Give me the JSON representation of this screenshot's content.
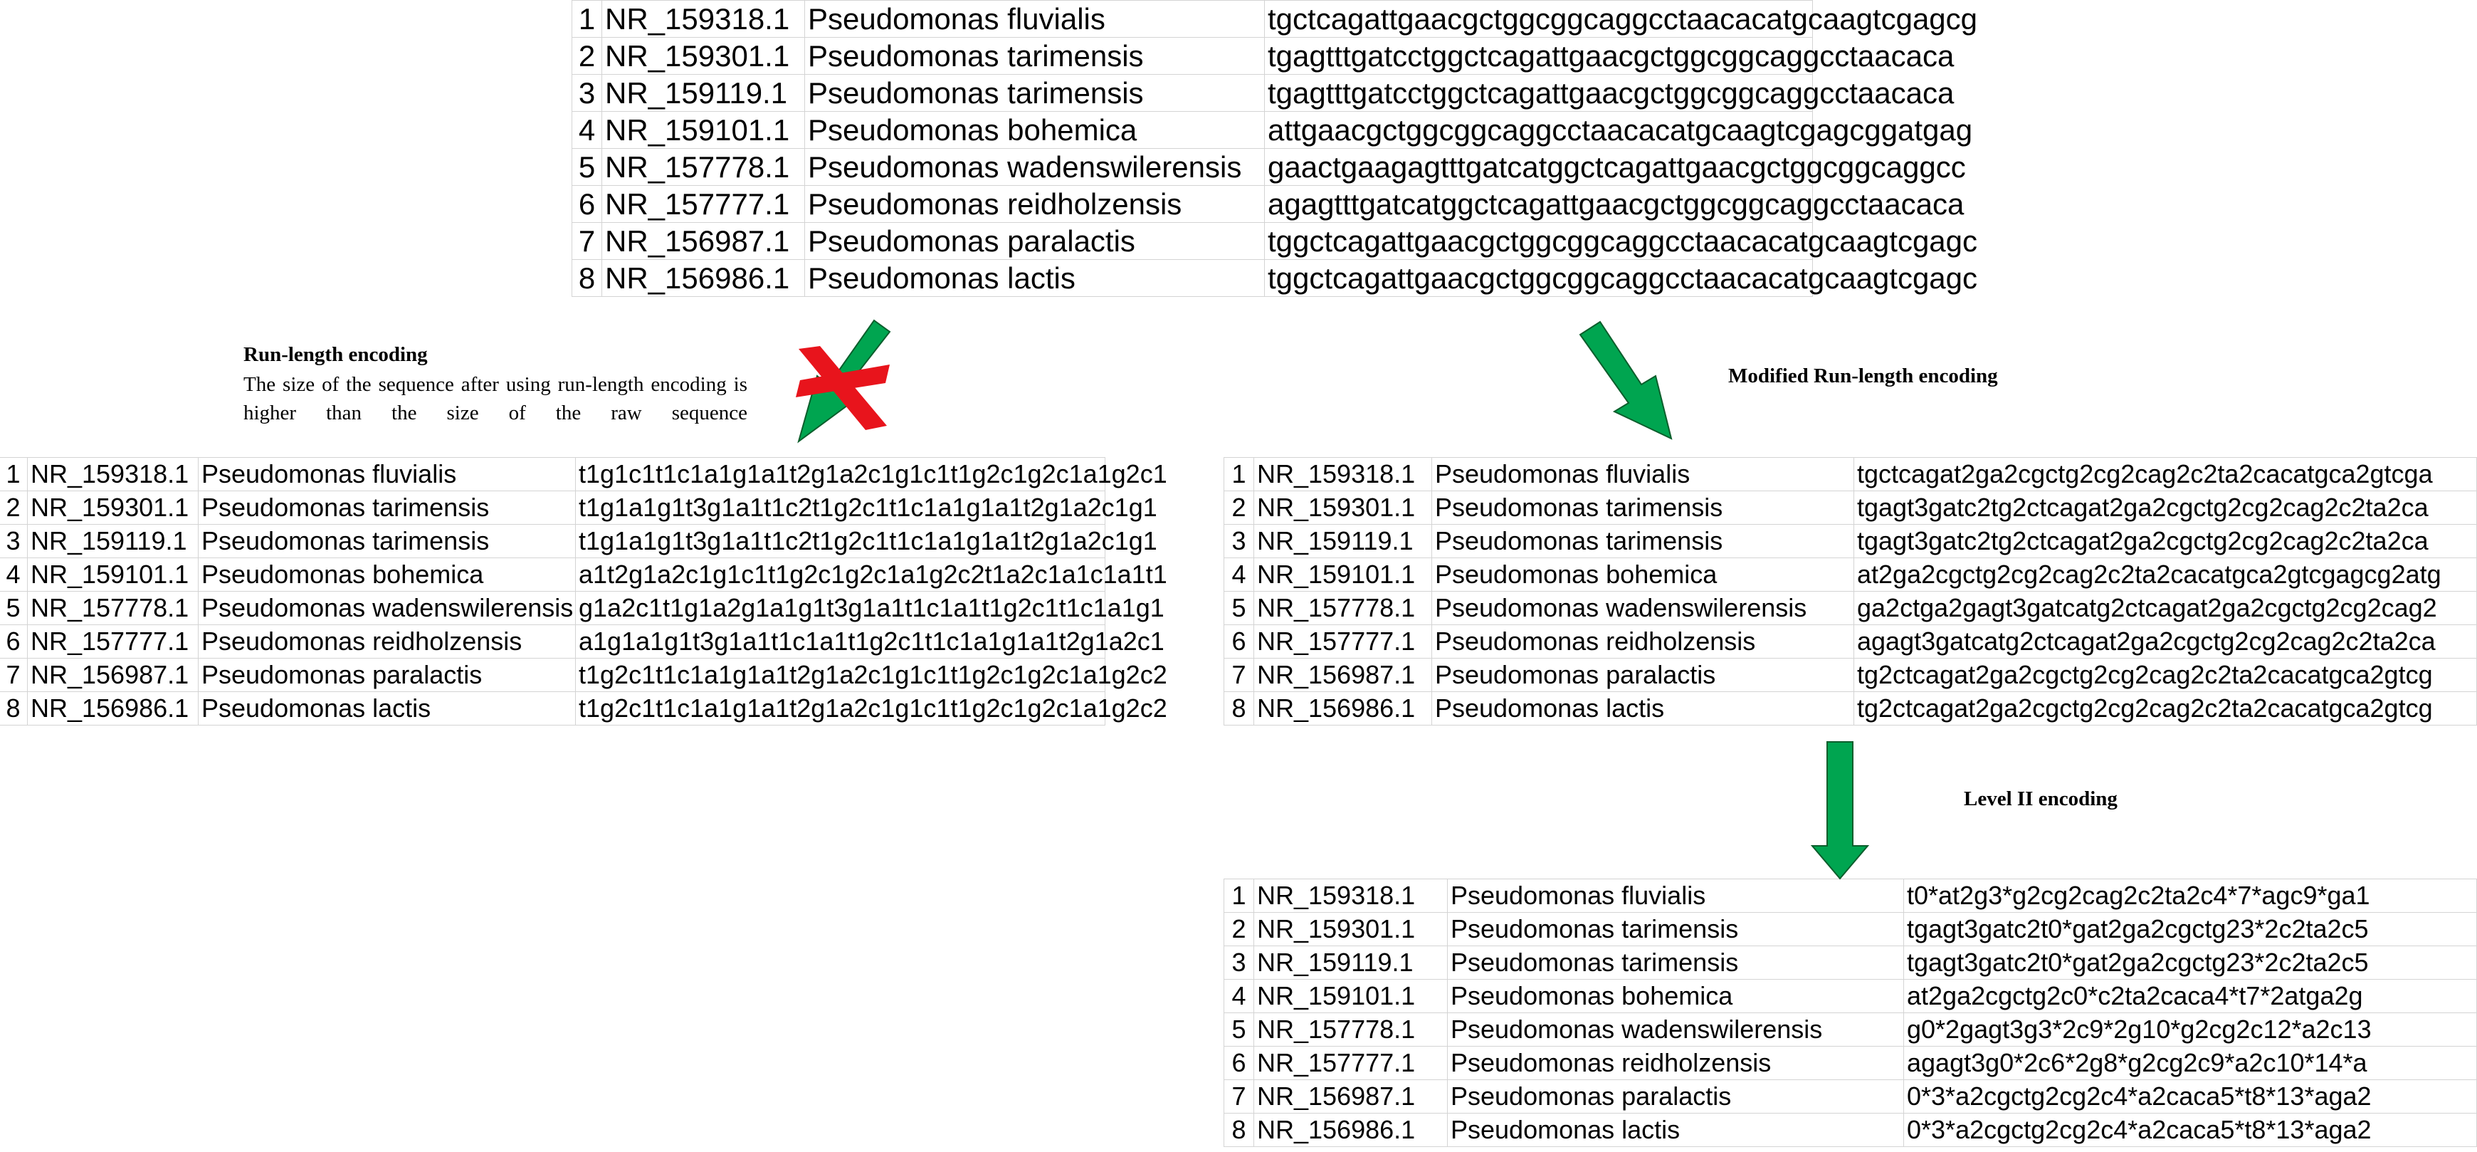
{
  "tables": {
    "source": {
      "rows": [
        {
          "num": "1",
          "accession": "NR_159318.1",
          "species": "Pseudomonas fluvialis",
          "sequence": "tgctcagattgaacgctggcggcaggcctaacacatgcaagtcgagcg"
        },
        {
          "num": "2",
          "accession": "NR_159301.1",
          "species": "Pseudomonas tarimensis",
          "sequence": "tgagtttgatcctggctcagattgaacgctggcggcaggcctaacaca"
        },
        {
          "num": "3",
          "accession": "NR_159119.1",
          "species": "Pseudomonas tarimensis",
          "sequence": "tgagtttgatcctggctcagattgaacgctggcggcaggcctaacaca"
        },
        {
          "num": "4",
          "accession": "NR_159101.1",
          "species": "Pseudomonas bohemica",
          "sequence": "attgaacgctggcggcaggcctaacacatgcaagtcgagcggatgag"
        },
        {
          "num": "5",
          "accession": "NR_157778.1",
          "species": "Pseudomonas wadenswilerensis",
          "sequence": "gaactgaagagtttgatcatggctcagattgaacgctggcggcaggcc"
        },
        {
          "num": "6",
          "accession": "NR_157777.1",
          "species": "Pseudomonas reidholzensis",
          "sequence": "agagtttgatcatggctcagattgaacgctggcggcaggcctaacaca"
        },
        {
          "num": "7",
          "accession": "NR_156987.1",
          "species": "Pseudomonas paralactis",
          "sequence": "tggctcagattgaacgctggcggcaggcctaacacatgcaagtcgagc"
        },
        {
          "num": "8",
          "accession": "NR_156986.1",
          "species": "Pseudomonas lactis",
          "sequence": "tggctcagattgaacgctggcggcaggcctaacacatgcaagtcgagc"
        }
      ]
    },
    "rle": {
      "rows": [
        {
          "num": "1",
          "accession": "NR_159318.1",
          "species": "Pseudomonas fluvialis",
          "sequence": "t1g1c1t1c1a1g1a1t2g1a2c1g1c1t1g2c1g2c1a1g2c1"
        },
        {
          "num": "2",
          "accession": "NR_159301.1",
          "species": "Pseudomonas tarimensis",
          "sequence": "t1g1a1g1t3g1a1t1c2t1g2c1t1c1a1g1a1t2g1a2c1g1"
        },
        {
          "num": "3",
          "accession": "NR_159119.1",
          "species": "Pseudomonas tarimensis",
          "sequence": "t1g1a1g1t3g1a1t1c2t1g2c1t1c1a1g1a1t2g1a2c1g1"
        },
        {
          "num": "4",
          "accession": "NR_159101.1",
          "species": "Pseudomonas bohemica",
          "sequence": "a1t2g1a2c1g1c1t1g2c1g2c1a1g2c2t1a2c1a1c1a1t1"
        },
        {
          "num": "5",
          "accession": "NR_157778.1",
          "species": "Pseudomonas wadenswilerensis",
          "sequence": "g1a2c1t1g1a2g1a1g1t3g1a1t1c1a1t1g2c1t1c1a1g1"
        },
        {
          "num": "6",
          "accession": "NR_157777.1",
          "species": "Pseudomonas reidholzensis",
          "sequence": "a1g1a1g1t3g1a1t1c1a1t1g2c1t1c1a1g1a1t2g1a2c1"
        },
        {
          "num": "7",
          "accession": "NR_156987.1",
          "species": "Pseudomonas paralactis",
          "sequence": "t1g2c1t1c1a1g1a1t2g1a2c1g1c1t1g2c1g2c1a1g2c2"
        },
        {
          "num": "8",
          "accession": "NR_156986.1",
          "species": "Pseudomonas lactis",
          "sequence": "t1g2c1t1c1a1g1a1t2g1a2c1g1c1t1g2c1g2c1a1g2c2"
        }
      ]
    },
    "modified": {
      "rows": [
        {
          "num": "1",
          "accession": "NR_159318.1",
          "species": "Pseudomonas fluvialis",
          "sequence": "tgctcagat2ga2cgctg2cg2cag2c2ta2cacatgca2gtcga"
        },
        {
          "num": "2",
          "accession": "NR_159301.1",
          "species": "Pseudomonas tarimensis",
          "sequence": "tgagt3gatc2tg2ctcagat2ga2cgctg2cg2cag2c2ta2ca"
        },
        {
          "num": "3",
          "accession": "NR_159119.1",
          "species": "Pseudomonas tarimensis",
          "sequence": "tgagt3gatc2tg2ctcagat2ga2cgctg2cg2cag2c2ta2ca"
        },
        {
          "num": "4",
          "accession": "NR_159101.1",
          "species": "Pseudomonas bohemica",
          "sequence": "at2ga2cgctg2cg2cag2c2ta2cacatgca2gtcgagcg2atg"
        },
        {
          "num": "5",
          "accession": "NR_157778.1",
          "species": "Pseudomonas wadenswilerensis",
          "sequence": "ga2ctga2gagt3gatcatg2ctcagat2ga2cgctg2cg2cag2"
        },
        {
          "num": "6",
          "accession": "NR_157777.1",
          "species": "Pseudomonas reidholzensis",
          "sequence": "agagt3gatcatg2ctcagat2ga2cgctg2cg2cag2c2ta2ca"
        },
        {
          "num": "7",
          "accession": "NR_156987.1",
          "species": "Pseudomonas paralactis",
          "sequence": "tg2ctcagat2ga2cgctg2cg2cag2c2ta2cacatgca2gtcg"
        },
        {
          "num": "8",
          "accession": "NR_156986.1",
          "species": "Pseudomonas lactis",
          "sequence": "tg2ctcagat2ga2cgctg2cg2cag2c2ta2cacatgca2gtcg"
        }
      ]
    },
    "level2": {
      "rows": [
        {
          "num": "1",
          "accession": "NR_159318.1",
          "species": "Pseudomonas fluvialis",
          "sequence": "t0*at2g3*g2cg2cag2c2ta2c4*7*agc9*ga1"
        },
        {
          "num": "2",
          "accession": "NR_159301.1",
          "species": "Pseudomonas tarimensis",
          "sequence": "tgagt3gatc2t0*gat2ga2cgctg23*2c2ta2c5"
        },
        {
          "num": "3",
          "accession": "NR_159119.1",
          "species": "Pseudomonas tarimensis",
          "sequence": "tgagt3gatc2t0*gat2ga2cgctg23*2c2ta2c5"
        },
        {
          "num": "4",
          "accession": "NR_159101.1",
          "species": "Pseudomonas bohemica",
          "sequence": "at2ga2cgctg2c0*c2ta2caca4*t7*2atga2g"
        },
        {
          "num": "5",
          "accession": "NR_157778.1",
          "species": "Pseudomonas wadenswilerensis",
          "sequence": "g0*2gagt3g3*2c9*2g10*g2cg2c12*a2c13"
        },
        {
          "num": "6",
          "accession": "NR_157777.1",
          "species": "Pseudomonas reidholzensis",
          "sequence": "agagt3g0*2c6*2g8*g2cg2c9*a2c10*14*a"
        },
        {
          "num": "7",
          "accession": "NR_156987.1",
          "species": "Pseudomonas paralactis",
          "sequence": "0*3*a2cgctg2cg2c4*a2caca5*t8*13*aga2"
        },
        {
          "num": "8",
          "accession": "NR_156986.1",
          "species": "Pseudomonas lactis",
          "sequence": "0*3*a2cgctg2cg2c4*a2caca5*t8*13*aga2"
        }
      ]
    }
  },
  "labels": {
    "rle_title": "Run-length encoding",
    "rle_note": "The size of the sequence after using run-length encoding is higher than the size of the raw sequence",
    "modified_title": "Modified Run-length encoding",
    "level2_title": "Level II encoding"
  },
  "colors": {
    "arrow_green": "#00a550",
    "arrow_outline": "#0b5e2c",
    "cross_red": "#e8141c",
    "grid": "#d4d4d4"
  }
}
